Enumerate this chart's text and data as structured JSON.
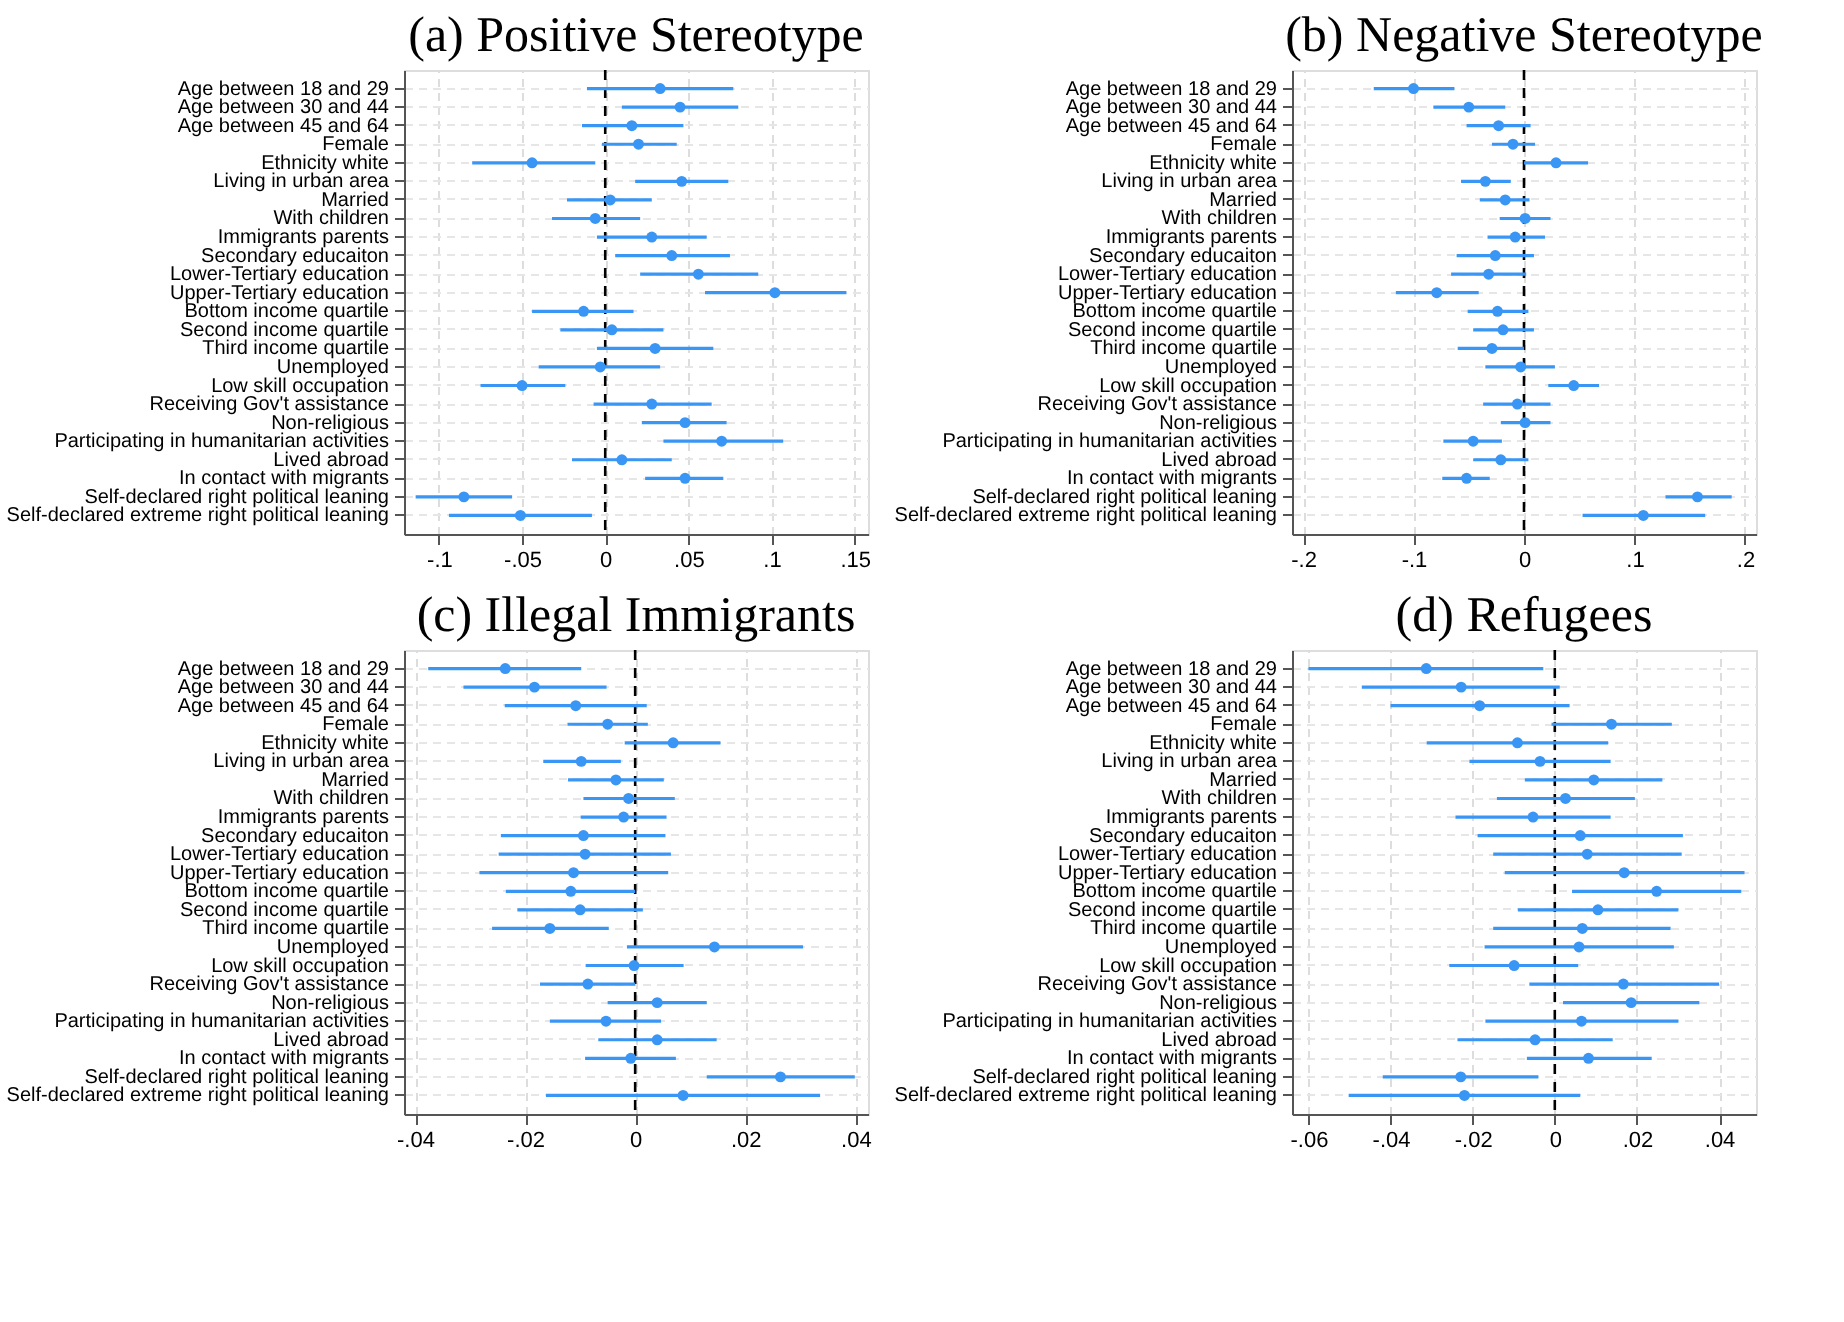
{
  "chart_data": [
    {
      "type": "scatter",
      "orientation": "horizontal",
      "title": "(a) Positive Stereotype",
      "color": "#3a96f5",
      "marker": "circle",
      "grid": true,
      "categories": [
        "Age between 18 and 29",
        "Age between 30 and 44",
        "Age between 45 and 64",
        "Female",
        "Ethnicity white",
        "Living in urban area",
        "Married",
        "With children",
        "Immigrants parents",
        "Secondary educaiton",
        "Lower-Tertiary education",
        "Upper-Tertiary education",
        "Bottom income quartile",
        "Second income quartile",
        "Third income quartile",
        "Unemployed",
        "Low skill occupation",
        "Receiving Gov't assistance",
        "Non-religious",
        "Participating in humanitarian activities",
        "Lived abroad",
        "In contact with migrants",
        "Self-declared right political leaning",
        "Self-declared extreme right political leaning"
      ],
      "values": [
        0.033,
        0.045,
        0.016,
        0.02,
        -0.044,
        0.046,
        0.003,
        -0.006,
        0.028,
        0.04,
        0.056,
        0.102,
        -0.013,
        0.004,
        0.03,
        -0.003,
        -0.05,
        0.028,
        0.048,
        0.07,
        0.01,
        0.048,
        -0.085,
        -0.051
      ],
      "errors": [
        [
          -0.011,
          0.077
        ],
        [
          0.01,
          0.08
        ],
        [
          -0.014,
          0.047
        ],
        [
          -0.002,
          0.043
        ],
        [
          -0.08,
          -0.006
        ],
        [
          0.018,
          0.074
        ],
        [
          -0.023,
          0.028
        ],
        [
          -0.032,
          0.021
        ],
        [
          -0.005,
          0.061
        ],
        [
          0.006,
          0.075
        ],
        [
          0.021,
          0.092
        ],
        [
          0.06,
          0.145
        ],
        [
          -0.044,
          0.017
        ],
        [
          -0.027,
          0.035
        ],
        [
          -0.005,
          0.065
        ],
        [
          -0.04,
          0.033
        ],
        [
          -0.075,
          -0.024
        ],
        [
          -0.007,
          0.064
        ],
        [
          0.022,
          0.073
        ],
        [
          0.035,
          0.107
        ],
        [
          -0.02,
          0.04
        ],
        [
          0.024,
          0.071
        ],
        [
          -0.114,
          -0.056
        ],
        [
          -0.094,
          -0.008
        ]
      ],
      "xlim": [
        -0.121,
        0.158
      ],
      "xticks": [
        {
          "value": -0.1,
          "label": "-.1"
        },
        {
          "value": -0.05,
          "label": "-.05"
        },
        0,
        {
          "value": 0.05,
          "label": ".05"
        },
        {
          "value": 0.1,
          "label": ".1"
        },
        {
          "value": 0.15,
          "label": ".15"
        }
      ],
      "ref_lines": [
        {
          "axis": "x",
          "value": 0,
          "color": "#000000",
          "line_style": "dashed"
        }
      ]
    },
    {
      "type": "scatter",
      "orientation": "horizontal",
      "title": "(b) Negative Stereotype",
      "color": "#3a96f5",
      "marker": "circle",
      "grid": true,
      "categories": [
        "Age between 18 and 29",
        "Age between 30 and 44",
        "Age between 45 and 64",
        "Female",
        "Ethnicity white",
        "Living in urban area",
        "Married",
        "With children",
        "Immigrants parents",
        "Secondary educaiton",
        "Lower-Tertiary education",
        "Upper-Tertiary education",
        "Bottom income quartile",
        "Second income quartile",
        "Third income quartile",
        "Unemployed",
        "Low skill occupation",
        "Receiving Gov't assistance",
        "Non-religious",
        "Participating in humanitarian activities",
        "Lived abroad",
        "In contact with migrants",
        "Self-declared right political leaning",
        "Self-declared extreme right political leaning"
      ],
      "values": [
        -0.1,
        -0.05,
        -0.023,
        -0.01,
        0.029,
        -0.035,
        -0.017,
        0.001,
        -0.008,
        -0.026,
        -0.032,
        -0.079,
        -0.024,
        -0.019,
        -0.029,
        -0.003,
        0.045,
        -0.006,
        0.001,
        -0.046,
        -0.021,
        -0.052,
        0.157,
        0.108
      ],
      "errors": [
        [
          -0.136,
          -0.063
        ],
        [
          -0.082,
          -0.017
        ],
        [
          -0.052,
          0.006
        ],
        [
          -0.029,
          0.01
        ],
        [
          0.0,
          0.058
        ],
        [
          -0.057,
          -0.012
        ],
        [
          -0.04,
          0.005
        ],
        [
          -0.022,
          0.024
        ],
        [
          -0.033,
          0.019
        ],
        [
          -0.061,
          0.009
        ],
        [
          -0.066,
          0.002
        ],
        [
          -0.116,
          -0.041
        ],
        [
          -0.051,
          0.004
        ],
        [
          -0.046,
          0.009
        ],
        [
          -0.06,
          0.0
        ],
        [
          -0.035,
          0.028
        ],
        [
          0.022,
          0.068
        ],
        [
          -0.037,
          0.024
        ],
        [
          -0.021,
          0.024
        ],
        [
          -0.073,
          -0.02
        ],
        [
          -0.046,
          0.004
        ],
        [
          -0.074,
          -0.031
        ],
        [
          0.128,
          0.188
        ],
        [
          0.053,
          0.164
        ]
      ],
      "xlim": [
        -0.21,
        0.21
      ],
      "xticks": [
        {
          "value": -0.2,
          "label": "-.2"
        },
        {
          "value": -0.1,
          "label": "-.1"
        },
        0,
        {
          "value": 0.1,
          "label": ".1"
        },
        {
          "value": 0.2,
          "label": ".2"
        }
      ],
      "ref_lines": [
        {
          "axis": "x",
          "value": 0,
          "color": "#000000",
          "line_style": "dashed"
        }
      ]
    },
    {
      "type": "scatter",
      "orientation": "horizontal",
      "title": "(c) Illegal Immigrants",
      "color": "#3a96f5",
      "marker": "circle",
      "grid": true,
      "categories": [
        "Age between 18 and 29",
        "Age between 30 and 44",
        "Age between 45 and 64",
        "Female",
        "Ethnicity white",
        "Living in urban area",
        "Married",
        "With children",
        "Immigrants parents",
        "Secondary educaiton",
        "Lower-Tertiary education",
        "Upper-Tertiary education",
        "Bottom income quartile",
        "Second income quartile",
        "Third income quartile",
        "Unemployed",
        "Low skill occupation",
        "Receiving Gov't assistance",
        "Non-religious",
        "Participating in humanitarian activities",
        "Lived abroad",
        "In contact with migrants",
        "Self-declared right political leaning",
        "Self-declared extreme right political leaning"
      ],
      "values": [
        -0.0236,
        -0.0183,
        -0.0108,
        -0.005,
        0.0069,
        -0.0098,
        -0.0035,
        -0.0012,
        -0.0021,
        -0.0094,
        -0.0091,
        -0.0112,
        -0.0117,
        -0.01,
        -0.0155,
        0.0144,
        -0.0002,
        -0.0086,
        0.004,
        -0.0053,
        0.004,
        -0.0008,
        0.0264,
        0.0087
      ],
      "errors": [
        [
          -0.0376,
          -0.0098
        ],
        [
          -0.0312,
          -0.0052
        ],
        [
          -0.0237,
          0.0021
        ],
        [
          -0.0123,
          0.0023
        ],
        [
          -0.0019,
          0.0155
        ],
        [
          -0.0167,
          -0.0026
        ],
        [
          -0.0122,
          0.0052
        ],
        [
          -0.0094,
          0.0072
        ],
        [
          -0.0099,
          0.0057
        ],
        [
          -0.0244,
          0.0055
        ],
        [
          -0.0248,
          0.0065
        ],
        [
          -0.0283,
          0.006
        ],
        [
          -0.0235,
          0.0
        ],
        [
          -0.0214,
          0.0014
        ],
        [
          -0.026,
          -0.0048
        ],
        [
          -0.0015,
          0.0305
        ],
        [
          -0.009,
          0.0088
        ],
        [
          -0.0173,
          0.0
        ],
        [
          -0.005,
          0.013
        ],
        [
          -0.0155,
          0.0047
        ],
        [
          -0.0067,
          0.0148
        ],
        [
          -0.0091,
          0.0074
        ],
        [
          0.013,
          0.0399
        ],
        [
          -0.0162,
          0.0336
        ]
      ],
      "xlim": [
        -0.042,
        0.0423
      ],
      "xticks": [
        {
          "value": -0.04,
          "label": "-.04"
        },
        {
          "value": -0.02,
          "label": "-.02"
        },
        0,
        {
          "value": 0.02,
          "label": ".02"
        },
        {
          "value": 0.04,
          "label": ".04"
        }
      ],
      "ref_lines": [
        {
          "axis": "x",
          "value": 0,
          "color": "#000000",
          "line_style": "dashed"
        }
      ]
    },
    {
      "type": "scatter",
      "orientation": "horizontal",
      "title": "(d) Refugees",
      "color": "#3a96f5",
      "marker": "circle",
      "grid": true,
      "categories": [
        "Age between 18 and 29",
        "Age between 30 and 44",
        "Age between 45 and 64",
        "Female",
        "Ethnicity white",
        "Living in urban area",
        "Married",
        "With children",
        "Immigrants parents",
        "Secondary educaiton",
        "Lower-Tertiary education",
        "Upper-Tertiary education",
        "Bottom income quartile",
        "Second income quartile",
        "Third income quartile",
        "Unemployed",
        "Low skill occupation",
        "Receiving Gov't assistance",
        "Non-religious",
        "Participating in humanitarian activities",
        "Lived abroad",
        "In contact with migrants",
        "Self-declared right political leaning",
        "Self-declared extreme right political leaning"
      ],
      "values": [
        -0.0313,
        -0.0228,
        -0.0183,
        0.0138,
        -0.0091,
        -0.0036,
        0.0095,
        0.0026,
        -0.0053,
        0.0062,
        0.0079,
        0.0169,
        0.0248,
        0.0105,
        0.0067,
        0.0059,
        -0.0099,
        0.0167,
        0.0186,
        0.0065,
        -0.0048,
        0.0082,
        -0.0229,
        -0.022
      ],
      "errors": [
        [
          -0.06,
          -0.0028
        ],
        [
          -0.047,
          0.0012
        ],
        [
          -0.04,
          0.0036
        ],
        [
          -0.0008,
          0.0285
        ],
        [
          -0.0312,
          0.013
        ],
        [
          -0.0208,
          0.0136
        ],
        [
          -0.0073,
          0.0262
        ],
        [
          -0.0141,
          0.0195
        ],
        [
          -0.0242,
          0.0136
        ],
        [
          -0.0188,
          0.0312
        ],
        [
          -0.015,
          0.0309
        ],
        [
          -0.0122,
          0.0462
        ],
        [
          0.0042,
          0.0454
        ],
        [
          -0.009,
          0.0301
        ],
        [
          -0.015,
          0.0282
        ],
        [
          -0.0171,
          0.029
        ],
        [
          -0.0257,
          0.0057
        ],
        [
          -0.0062,
          0.04
        ],
        [
          0.002,
          0.0352
        ],
        [
          -0.0169,
          0.0301
        ],
        [
          -0.0237,
          0.0141
        ],
        [
          -0.0068,
          0.0236
        ],
        [
          -0.0419,
          -0.004
        ],
        [
          -0.0502,
          0.0062
        ]
      ],
      "xlim": [
        -0.064,
        0.049
      ],
      "xticks": [
        {
          "value": -0.06,
          "label": "-.06"
        },
        {
          "value": -0.04,
          "label": "-.04"
        },
        {
          "value": -0.02,
          "label": "-.02"
        },
        0,
        {
          "value": 0.02,
          "label": ".02"
        },
        {
          "value": 0.04,
          "label": ".04"
        }
      ],
      "ref_lines": [
        {
          "axis": "x",
          "value": 0,
          "color": "#000000",
          "line_style": "dashed"
        }
      ]
    }
  ]
}
